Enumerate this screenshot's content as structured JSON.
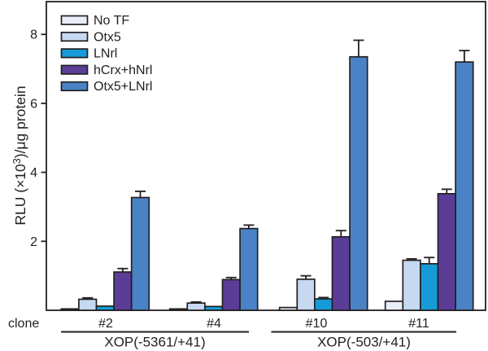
{
  "figure": {
    "background": "#ffffff",
    "line_color": "#231f20"
  },
  "chart_data": {
    "type": "bar",
    "title": "",
    "xlabel": "",
    "ylabel": "RLU (×10³)/μg protein",
    "ylim": [
      0,
      8.95
    ],
    "yticks": [
      2,
      4,
      6,
      8
    ],
    "grid": false,
    "legend_position": "top-left-inside",
    "clone_row_label": "clone",
    "categories": [
      "#2",
      "#4",
      "#10",
      "#11"
    ],
    "category_groups": [
      {
        "label": "XOP(-5361/+41)",
        "clones": [
          "#2",
          "#4"
        ]
      },
      {
        "label": "XOP(-503/+41)",
        "clones": [
          "#10",
          "#11"
        ]
      }
    ],
    "series": [
      {
        "name": "No TF",
        "color": "#eaeef8",
        "values": [
          0.04,
          0.04,
          0.08,
          0.26
        ],
        "errors": [
          0,
          0,
          0,
          0
        ]
      },
      {
        "name": "Otx5",
        "color": "#c6d9f1",
        "values": [
          0.32,
          0.21,
          0.9,
          1.45
        ],
        "errors": [
          0.04,
          0.03,
          0.1,
          0.04
        ]
      },
      {
        "name": "LNrl",
        "color": "#169bd7",
        "values": [
          0.12,
          0.11,
          0.33,
          1.35
        ],
        "errors": [
          0,
          0,
          0.04,
          0.18
        ]
      },
      {
        "name": "hCrx+hNrl",
        "color": "#5b3d97",
        "values": [
          1.11,
          0.89,
          2.13,
          3.38
        ],
        "errors": [
          0.1,
          0.06,
          0.18,
          0.13
        ]
      },
      {
        "name": "Otx5+LNrl",
        "color": "#4a83c5",
        "values": [
          3.27,
          2.37,
          7.35,
          7.2
        ],
        "errors": [
          0.18,
          0.1,
          0.48,
          0.33
        ]
      }
    ]
  }
}
